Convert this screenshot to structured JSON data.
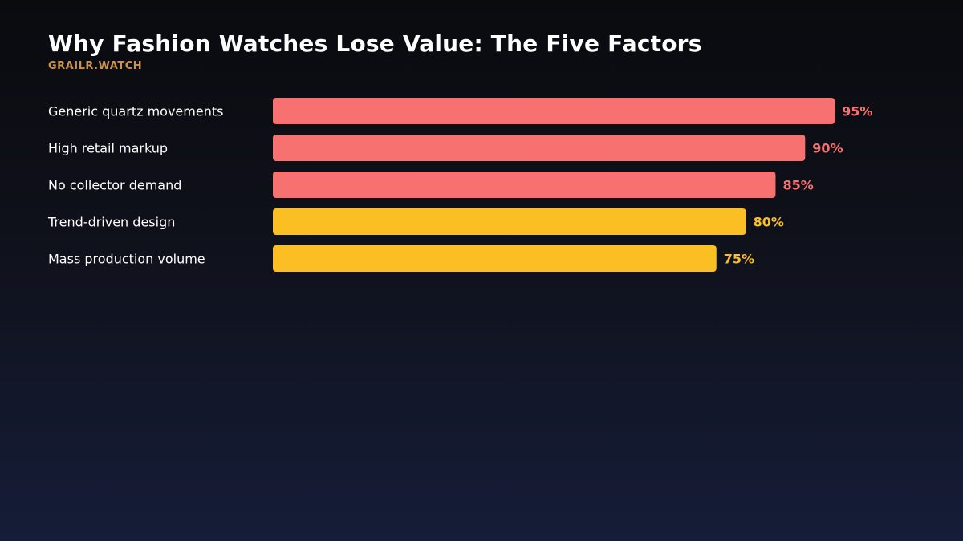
{
  "header": {
    "title": "Why Fashion Watches Lose Value: The Five Factors",
    "brand": "GRAILR.WATCH"
  },
  "colors": {
    "high": "#f87171",
    "mid": "#fbbf24"
  },
  "chart_data": {
    "type": "bar",
    "orientation": "horizontal",
    "title": "Why Fashion Watches Lose Value: The Five Factors",
    "categories": [
      "Generic quartz movements",
      "High retail markup",
      "No collector demand",
      "Trend-driven design",
      "Mass production volume"
    ],
    "values": [
      95,
      90,
      85,
      80,
      75
    ],
    "value_labels": [
      "95%",
      "90%",
      "85%",
      "80%",
      "75%"
    ],
    "bar_colors": [
      "#f87171",
      "#f87171",
      "#f87171",
      "#fbbf24",
      "#fbbf24"
    ],
    "xlim": [
      0,
      100
    ],
    "grid": false,
    "legend": "none"
  }
}
